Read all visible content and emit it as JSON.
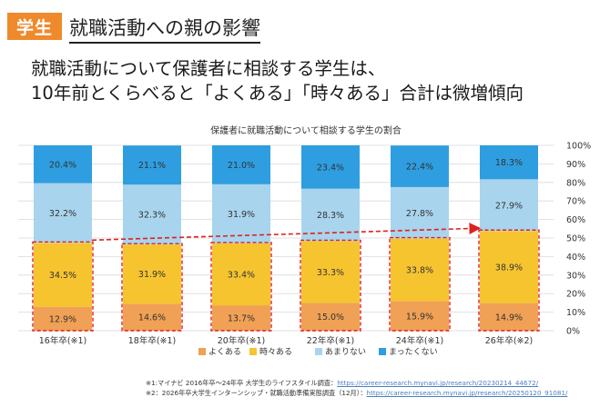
{
  "tag": "学生",
  "heading": "就職活動への親の影響",
  "headline": {
    "line1": "就職活動について保護者に相談する学生は、",
    "line2": "10年前とくらべると「よくある」「時々ある」合計は微増傾向"
  },
  "chart_data": {
    "type": "bar",
    "stacked": true,
    "title": "保護者に就職活動について相談する学生の割合",
    "categories": [
      "16年卒(※1)",
      "18年卒(※1)",
      "20年卒(※1)",
      "22年卒(※1)",
      "24年卒(※1)",
      "26年卒(※2)"
    ],
    "series": [
      {
        "name": "よくある",
        "values": [
          12.9,
          14.6,
          13.7,
          15.0,
          15.9,
          14.9
        ],
        "color": "#f0a155"
      },
      {
        "name": "時々ある",
        "values": [
          34.5,
          31.9,
          33.4,
          33.3,
          33.8,
          38.9
        ],
        "color": "#f5c42f"
      },
      {
        "name": "あまりない",
        "values": [
          32.2,
          32.3,
          31.9,
          28.3,
          27.8,
          27.9
        ],
        "color": "#a9d4ee"
      },
      {
        "name": "まったくない",
        "values": [
          20.4,
          21.1,
          21.0,
          23.4,
          22.4,
          18.3
        ],
        "color": "#2e9ee0"
      }
    ],
    "value_labels": [
      [
        "12.9%",
        "14.6%",
        "13.7%",
        "15.0%",
        "15.9%",
        "14.9%"
      ],
      [
        "34.5%",
        "31.9%",
        "33.4%",
        "33.3%",
        "33.8%",
        "38.9%"
      ],
      [
        "32.2%",
        "32.3%",
        "31.9%",
        "28.3%",
        "27.8%",
        "27.9%"
      ],
      [
        "20.4%",
        "21.1%",
        "21.0%",
        "23.4%",
        "22.4%",
        "18.3%"
      ]
    ],
    "y_ticks": [
      "0%",
      "10%",
      "20%",
      "30%",
      "40%",
      "50%",
      "60%",
      "70%",
      "80%",
      "90%",
      "100%"
    ],
    "ylim": [
      0,
      100
    ],
    "legend_position": "bottom",
    "highlight": "よくある + 時々ある (dashed red boxes, upward trend arrow)",
    "highlight_color": "#e02020"
  },
  "footnotes": {
    "note1": "※1:マイナビ 2016年卒〜24年卒 大学生のライフスタイル調査：",
    "note1_link": "https://career-research.mynavi.jp/research/20230214_44672/",
    "note2": "※2：2026年卒大学生インターンシップ・就職活動準備実態調査（12月）：",
    "note2_link": "https://career-research.mynavi.jp/research/20250120_91081/"
  }
}
